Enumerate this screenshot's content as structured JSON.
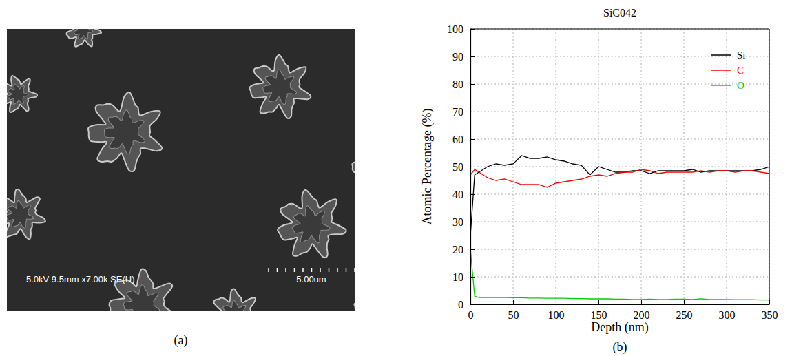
{
  "chart_data": {
    "type": "line",
    "title": "SiC042",
    "x_label": "Depth (nm)",
    "y_label": "Atomic Percentage (%)",
    "x": [
      0,
      5,
      10,
      20,
      30,
      40,
      50,
      60,
      70,
      80,
      90,
      100,
      110,
      120,
      130,
      140,
      150,
      160,
      170,
      180,
      190,
      200,
      210,
      220,
      230,
      240,
      250,
      260,
      270,
      280,
      290,
      300,
      310,
      320,
      330,
      340,
      350
    ],
    "series": [
      {
        "name": "Si",
        "color": "#000000",
        "values": [
          25,
          47,
          48,
          50,
          51,
          50.5,
          51,
          54,
          53,
          53,
          53.5,
          52.5,
          52,
          51,
          50.5,
          47,
          50,
          49,
          48,
          48,
          48.5,
          48.5,
          47.5,
          48.5,
          48.5,
          48.5,
          48.5,
          49,
          48,
          48.5,
          48.5,
          48.5,
          48.5,
          48.5,
          48.5,
          49,
          50
        ]
      },
      {
        "name": "C",
        "color": "#ff0000",
        "values": [
          47,
          49,
          48,
          46,
          45,
          45.5,
          44.5,
          43.5,
          43.5,
          43.5,
          42.5,
          44,
          44.5,
          45,
          45.5,
          46.5,
          47,
          46.5,
          47.5,
          48,
          48,
          49,
          48.5,
          47.5,
          48,
          48,
          48,
          48,
          48.5,
          48,
          48.5,
          48.5,
          48,
          48.5,
          48.5,
          48,
          47.5
        ]
      },
      {
        "name": "O",
        "color": "#00cc00",
        "values": [
          20,
          3,
          2.5,
          2.5,
          2.5,
          2.5,
          2.4,
          2.4,
          2.3,
          2.3,
          2.2,
          2.2,
          2.2,
          2.1,
          2.1,
          2,
          2,
          2,
          1.9,
          1.9,
          1.8,
          1.8,
          1.9,
          1.8,
          1.8,
          1.9,
          1.9,
          1.8,
          2,
          1.8,
          1.8,
          1.8,
          1.7,
          1.7,
          1.7,
          1.6,
          1.6
        ]
      }
    ],
    "xlim": [
      0,
      350
    ],
    "xticks": [
      0,
      50,
      100,
      150,
      200,
      250,
      300,
      350
    ],
    "ylim": [
      0,
      100
    ],
    "yticks": [
      0,
      10,
      20,
      30,
      40,
      50,
      60,
      70,
      80,
      90,
      100
    ],
    "grid": true,
    "legend": "top-right"
  },
  "sem_image": {
    "panel_label": "(a)",
    "info_text": "5.0kV 9.5mm x7.00k SE(U)",
    "scale_text": "5.00um"
  },
  "chart_panel_label": "(b)"
}
